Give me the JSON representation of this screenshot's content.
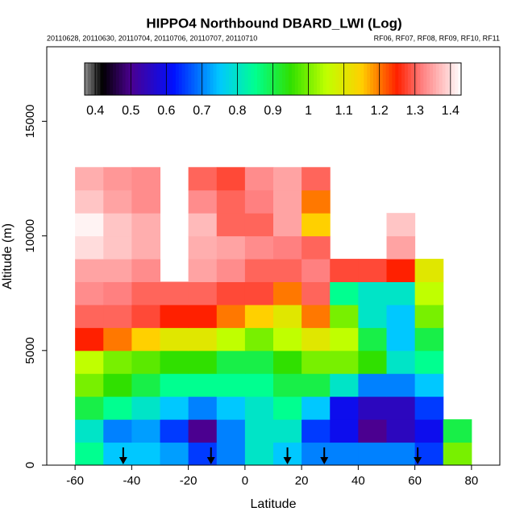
{
  "chart_data": {
    "type": "heatmap",
    "title": "HIPPO4 Northbound DBARD_LWI (Log)",
    "subtitle_left": "20110628, 20110630, 20110704, 20110706, 20110707, 20110710",
    "subtitle_right": "RF06, RF07, RF08, RF09, RF10, RF11",
    "xlabel": "Latitude",
    "ylabel": "Altitude (m)",
    "xlim": [
      -70,
      90
    ],
    "xticks": [
      -60,
      -40,
      -20,
      0,
      20,
      40,
      60,
      80
    ],
    "ylim": [
      0,
      18250
    ],
    "yticks": [
      0,
      5000,
      10000,
      15000
    ],
    "xbins": [
      -60,
      -50,
      -40,
      -30,
      -20,
      -10,
      0,
      10,
      20,
      30,
      40,
      50,
      60,
      70,
      80
    ],
    "ybins": [
      0,
      1000,
      2000,
      3000,
      4000,
      5000,
      6000,
      7000,
      8000,
      9000,
      10000,
      11000,
      12000,
      13000
    ],
    "z": [
      [
        0.85,
        0.75,
        0.75,
        0.72,
        0.65,
        0.7,
        0.8,
        0.75,
        0.7,
        0.7,
        0.7,
        0.7,
        0.65,
        1.0
      ],
      [
        0.8,
        0.7,
        0.72,
        0.65,
        0.5,
        0.7,
        0.8,
        0.8,
        0.65,
        0.6,
        0.5,
        0.55,
        0.6,
        0.9
      ],
      [
        0.9,
        0.85,
        0.8,
        0.75,
        0.7,
        0.75,
        0.8,
        0.85,
        0.75,
        0.6,
        0.55,
        0.55,
        0.65,
        null
      ],
      [
        1.0,
        0.95,
        0.9,
        0.85,
        0.85,
        0.85,
        0.85,
        0.9,
        0.9,
        0.8,
        0.7,
        0.7,
        0.75,
        null
      ],
      [
        1.05,
        1.0,
        0.98,
        0.95,
        0.95,
        0.9,
        0.9,
        0.95,
        1.0,
        1.0,
        0.95,
        0.8,
        0.85,
        null
      ],
      [
        1.25,
        1.2,
        1.15,
        1.1,
        1.1,
        1.05,
        1.0,
        1.05,
        1.1,
        1.05,
        0.9,
        0.75,
        0.9,
        null
      ],
      [
        1.3,
        1.3,
        1.28,
        1.25,
        1.25,
        1.2,
        1.15,
        1.1,
        1.2,
        1.0,
        0.8,
        0.75,
        1.0,
        null
      ],
      [
        1.33,
        1.32,
        1.3,
        1.3,
        1.3,
        1.28,
        1.28,
        1.2,
        1.3,
        0.85,
        0.8,
        0.8,
        1.05,
        null
      ],
      [
        1.35,
        1.35,
        1.33,
        null,
        1.35,
        1.33,
        1.3,
        1.3,
        1.32,
        1.28,
        1.28,
        1.25,
        1.1,
        null
      ],
      [
        1.4,
        1.38,
        1.36,
        null,
        1.36,
        1.35,
        1.33,
        1.32,
        1.3,
        null,
        null,
        1.35,
        null,
        null
      ],
      [
        1.42,
        1.38,
        1.36,
        null,
        1.37,
        1.3,
        1.3,
        1.35,
        1.15,
        null,
        null,
        1.38,
        null,
        null
      ],
      [
        1.38,
        1.35,
        1.33,
        null,
        1.33,
        1.3,
        1.32,
        1.35,
        1.2,
        null,
        null,
        null,
        null,
        null
      ],
      [
        1.36,
        1.34,
        1.33,
        null,
        1.3,
        1.28,
        1.33,
        1.35,
        1.3,
        null,
        null,
        null,
        null,
        null
      ]
    ],
    "clim": [
      0.37,
      1.43
    ],
    "cticks": [
      0.4,
      0.5,
      0.6,
      0.7,
      0.8,
      0.9,
      1.0,
      1.1,
      1.2,
      1.3,
      1.4
    ],
    "colormap": [
      {
        "value": 0.37,
        "color": "#8a8a8a"
      },
      {
        "value": 0.42,
        "color": "#000000"
      },
      {
        "value": 0.5,
        "color": "#4b0090"
      },
      {
        "value": 0.62,
        "color": "#0010ff"
      },
      {
        "value": 0.75,
        "color": "#00c8ff"
      },
      {
        "value": 0.85,
        "color": "#00ff90"
      },
      {
        "value": 0.95,
        "color": "#30e000"
      },
      {
        "value": 1.05,
        "color": "#c0ff00"
      },
      {
        "value": 1.15,
        "color": "#ffd000"
      },
      {
        "value": 1.25,
        "color": "#ff2000"
      },
      {
        "value": 1.32,
        "color": "#ff8080"
      },
      {
        "value": 1.43,
        "color": "#ffffff"
      }
    ],
    "arrows_x": [
      -43,
      -12,
      15,
      28,
      61
    ]
  }
}
